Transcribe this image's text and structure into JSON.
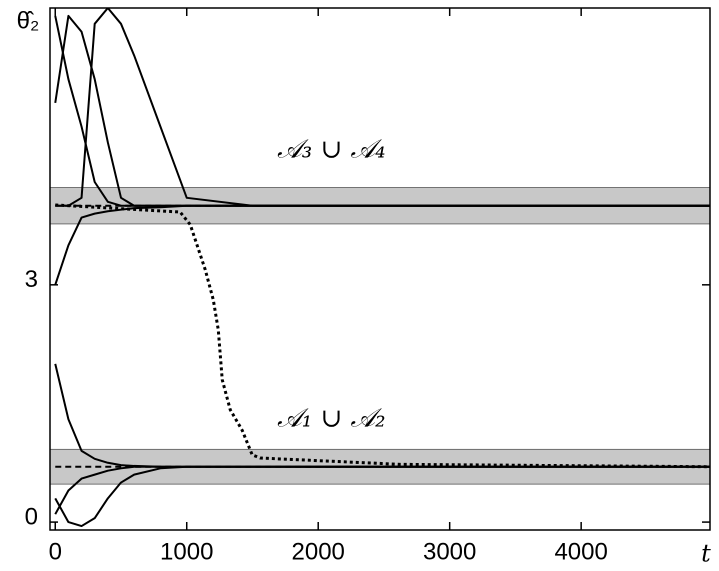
{
  "chart_data": {
    "type": "line",
    "y_label": "θ̂₂",
    "x_label": "t",
    "annotations": [
      {
        "text": "𝒜₃ ∪ 𝒜₄",
        "x": 2100,
        "y": 4.7
      },
      {
        "text": "𝒜₁ ∪ 𝒜₂",
        "x": 2100,
        "y": 1.3
      }
    ],
    "bands": [
      [
        3.77,
        4.23
      ],
      [
        0.48,
        0.92
      ]
    ],
    "band_color": "#c8c8c8",
    "xlim": [
      -40,
      4980
    ],
    "ylim": [
      -0.1,
      6.5
    ],
    "xticks": [
      0,
      1000,
      2000,
      3000,
      4000
    ],
    "yticks": [
      0,
      3
    ],
    "series": [
      {
        "color": "#000",
        "style": "solid",
        "x": [
          0,
          100,
          200,
          300,
          400,
          500,
          600,
          800,
          1000,
          1500,
          4980
        ],
        "values": [
          6.4,
          5.6,
          5.0,
          4.3,
          4.05,
          4.0,
          4.0,
          4.0,
          4.0,
          4.0,
          4.0
        ]
      },
      {
        "color": "#000",
        "style": "solid",
        "x": [
          0,
          100,
          200,
          300,
          400,
          500,
          600,
          800,
          1000,
          1500,
          4980
        ],
        "values": [
          5.3,
          6.4,
          6.2,
          5.6,
          4.8,
          4.1,
          4.0,
          4.0,
          4.0,
          4.0,
          4.0
        ]
      },
      {
        "color": "#000",
        "style": "solid",
        "x": [
          0,
          100,
          200,
          300,
          400,
          500,
          600,
          800,
          1000,
          1500,
          4980
        ],
        "values": [
          4.0,
          4.0,
          4.1,
          6.3,
          6.5,
          6.3,
          5.9,
          5.0,
          4.1,
          4.0,
          4.0
        ]
      },
      {
        "color": "#000",
        "style": "solid",
        "x": [
          0,
          100,
          200,
          300,
          400,
          500,
          600,
          800,
          1000,
          1500,
          4980
        ],
        "values": [
          3.0,
          3.5,
          3.85,
          3.9,
          3.93,
          3.95,
          3.97,
          3.98,
          4.0,
          4.0,
          4.0
        ]
      },
      {
        "color": "#000",
        "style": "solid",
        "x": [
          0,
          100,
          200,
          300,
          400,
          500,
          600,
          800,
          1000,
          1500,
          4980
        ],
        "values": [
          2.0,
          1.3,
          0.9,
          0.8,
          0.75,
          0.72,
          0.71,
          0.7,
          0.7,
          0.7,
          0.7
        ]
      },
      {
        "color": "#000",
        "style": "solid",
        "x": [
          0,
          100,
          200,
          300,
          400,
          500,
          600,
          800,
          1000,
          1500,
          4980
        ],
        "values": [
          0.1,
          0.4,
          0.55,
          0.6,
          0.65,
          0.68,
          0.7,
          0.7,
          0.7,
          0.7,
          0.7
        ]
      },
      {
        "color": "#000",
        "style": "solid",
        "x": [
          0,
          100,
          200,
          300,
          400,
          500,
          600,
          800,
          1000,
          1500,
          4980
        ],
        "values": [
          0.3,
          0.0,
          -0.05,
          0.05,
          0.3,
          0.5,
          0.6,
          0.68,
          0.7,
          0.7,
          0.7
        ]
      },
      {
        "color": "#000",
        "style": "dashed",
        "x": [
          0,
          4980
        ],
        "values": [
          4.0,
          4.0
        ]
      },
      {
        "color": "#000",
        "style": "dashed",
        "x": [
          0,
          4980
        ],
        "values": [
          0.7,
          0.7
        ]
      },
      {
        "color": "#000",
        "style": "dotted",
        "x": [
          0,
          950,
          1027,
          1141,
          1202,
          1240,
          1270,
          1331,
          1422,
          1498,
          1559,
          2624,
          4980
        ],
        "values": [
          4.01,
          3.92,
          3.76,
          3.19,
          2.81,
          2.43,
          1.8,
          1.42,
          1.16,
          0.85,
          0.81,
          0.73,
          0.7
        ]
      }
    ]
  }
}
